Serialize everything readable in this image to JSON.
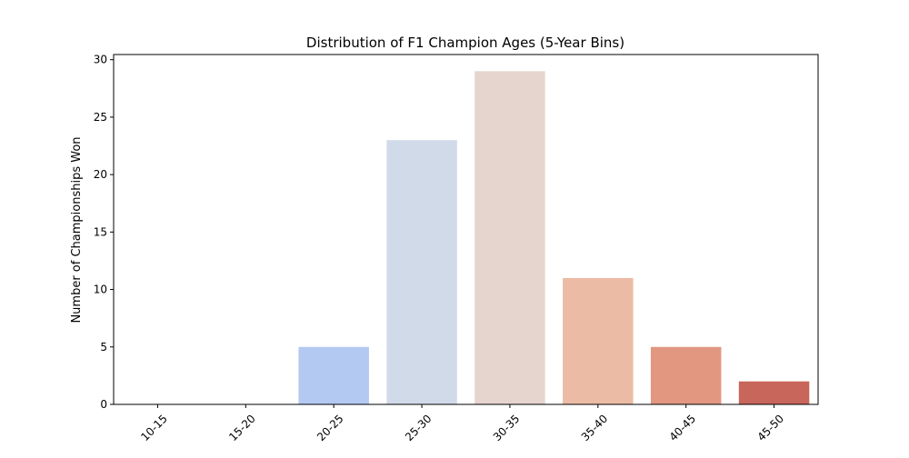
{
  "chart_data": {
    "type": "bar",
    "title": "Distribution of F1 Champion Ages (5-Year Bins)",
    "xlabel": "",
    "ylabel": "Number of Championships Won",
    "categories": [
      "10-15",
      "15-20",
      "20-25",
      "25-30",
      "30-35",
      "35-40",
      "40-45",
      "45-50"
    ],
    "values": [
      0,
      0,
      5,
      23,
      29,
      11,
      5,
      2
    ],
    "colors": [
      "#3b4cc0",
      "#6788ee",
      "#b3c9f2",
      "#d1dae9",
      "#e6d5cf",
      "#ecbba6",
      "#e19780",
      "#c9665b"
    ],
    "ylim": [
      0,
      30.45
    ],
    "yticks": [
      0,
      5,
      10,
      15,
      20,
      25,
      30
    ],
    "grid": false,
    "legend": "none"
  }
}
